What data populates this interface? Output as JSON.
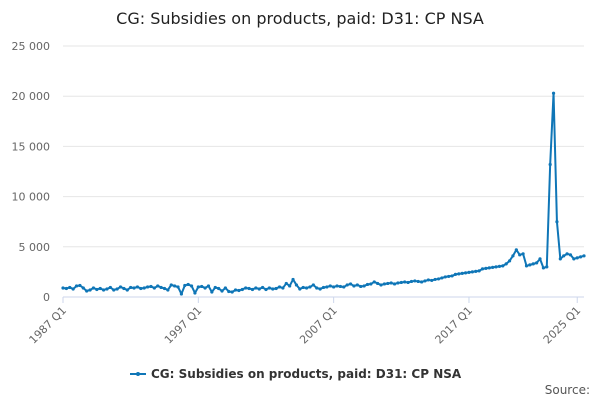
{
  "colors": {
    "series": "#0F76B7",
    "grid": "#e6e6e6",
    "axis": "#ccd6eb"
  },
  "chart_data": {
    "type": "line",
    "title": "CG: Subsidies on products, paid: D31: CP NSA",
    "ylim": [
      0,
      25000
    ],
    "y_ticks": [
      0,
      5000,
      10000,
      15000,
      20000,
      25000
    ],
    "y_tick_labels": [
      "0",
      "5 000",
      "10 000",
      "15 000",
      "20 000",
      "25 000"
    ],
    "x_tick_labels": [
      "1987 Q1",
      "1997 Q1",
      "2007 Q1",
      "2017 Q1",
      "2025 Q1"
    ],
    "x_tick_index": [
      0,
      40,
      80,
      120,
      152
    ],
    "grid": true,
    "legend_position": "bottom",
    "series": [
      {
        "name": "CG: Subsidies on products, paid: D31: CP NSA",
        "x_start": "1987 Q1",
        "frequency": "quarterly",
        "values": [
          900,
          850,
          950,
          800,
          1100,
          1150,
          900,
          600,
          700,
          900,
          750,
          850,
          700,
          800,
          950,
          700,
          800,
          1000,
          850,
          700,
          950,
          900,
          1000,
          850,
          900,
          1000,
          1050,
          900,
          1100,
          950,
          850,
          700,
          1200,
          1100,
          1000,
          300,
          1150,
          1250,
          1100,
          400,
          1000,
          1050,
          900,
          1100,
          500,
          950,
          850,
          600,
          900,
          550,
          500,
          700,
          650,
          750,
          900,
          850,
          750,
          900,
          800,
          950,
          750,
          900,
          800,
          850,
          1000,
          900,
          1350,
          1100,
          1750,
          1200,
          800,
          950,
          900,
          1000,
          1200,
          900,
          800,
          950,
          1000,
          1100,
          1000,
          1100,
          1050,
          1000,
          1200,
          1300,
          1100,
          1200,
          1050,
          1100,
          1250,
          1300,
          1500,
          1350,
          1200,
          1300,
          1350,
          1400,
          1300,
          1400,
          1450,
          1500,
          1450,
          1550,
          1600,
          1550,
          1500,
          1600,
          1700,
          1650,
          1750,
          1800,
          1900,
          2000,
          2050,
          2100,
          2250,
          2300,
          2350,
          2400,
          2450,
          2500,
          2550,
          2600,
          2800,
          2850,
          2900,
          2950,
          3000,
          3050,
          3100,
          3300,
          3600,
          4100,
          4700,
          4200,
          4300,
          3100,
          3200,
          3300,
          3400,
          3800,
          2900,
          3000,
          13200,
          20300,
          7500,
          3800,
          4100,
          4300,
          4200,
          3800,
          3900,
          4000,
          4100
        ]
      }
    ],
    "credits": "Source:"
  }
}
